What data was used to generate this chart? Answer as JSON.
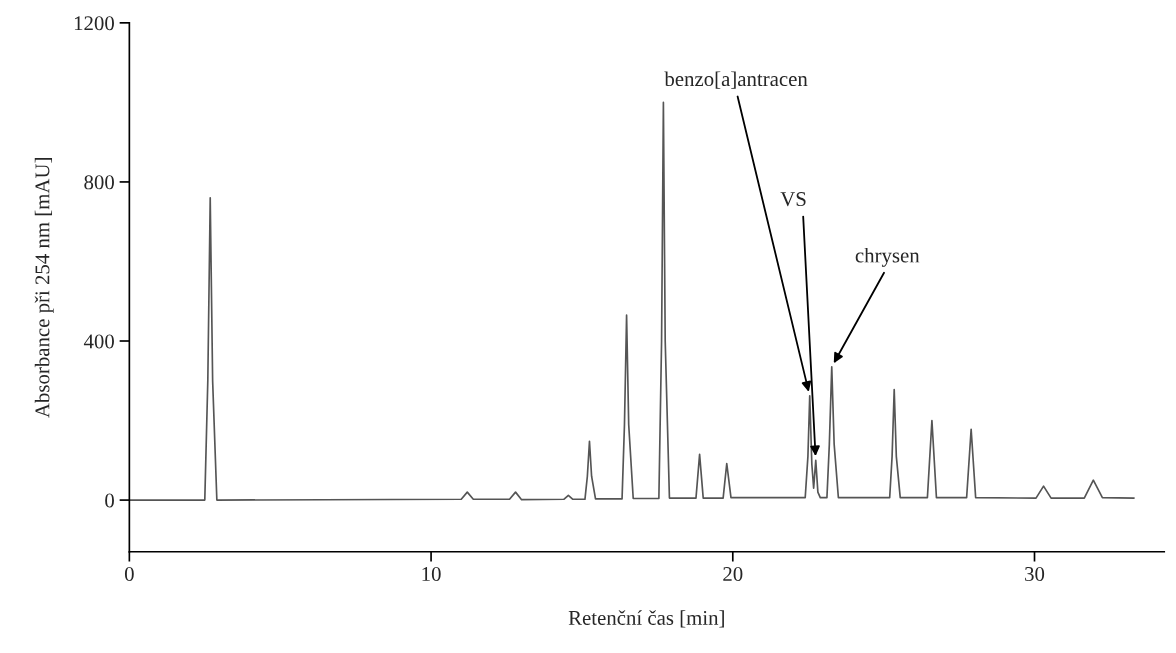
{
  "chart_data": {
    "type": "line",
    "xlabel": "Retenční čas [min]",
    "ylabel": "Absorbance při 254 nm [mAU]",
    "xlim": [
      0,
      34.3
    ],
    "xticks": [
      0,
      10,
      20,
      30
    ],
    "ylim": [
      -130,
      1200
    ],
    "yticks": [
      0,
      400,
      800,
      1200
    ],
    "grid": false,
    "legend": false,
    "marker": "none",
    "line_style": "solid",
    "series": [
      {
        "color": "#555555",
        "x": [
          0,
          2.5,
          2.6,
          2.68,
          2.76,
          2.9,
          11.0,
          11.2,
          11.4,
          12.6,
          12.8,
          13.0,
          14.4,
          14.55,
          14.7,
          15.1,
          15.18,
          15.25,
          15.32,
          15.45,
          16.33,
          16.41,
          16.48,
          16.55,
          16.7,
          17.55,
          17.64,
          17.7,
          17.76,
          17.9,
          18.78,
          18.9,
          19.02,
          19.68,
          19.8,
          19.94,
          22.4,
          22.49,
          22.55,
          22.62,
          22.68,
          22.75,
          22.82,
          22.9,
          23.12,
          23.2,
          23.28,
          23.36,
          23.5,
          25.2,
          25.28,
          25.35,
          25.42,
          25.55,
          26.45,
          26.6,
          26.75,
          27.75,
          27.9,
          28.05,
          30.05,
          30.3,
          30.55,
          31.65,
          31.95,
          32.25,
          33.3
        ],
        "values": [
          0,
          0,
          300,
          760,
          300,
          0,
          2,
          20,
          2,
          2,
          20,
          1,
          2,
          12,
          2,
          2,
          60,
          148,
          60,
          3,
          3,
          190,
          465,
          190,
          4,
          4,
          400,
          1000,
          400,
          5,
          5,
          115,
          5,
          5,
          92,
          6,
          6,
          110,
          262,
          90,
          30,
          100,
          20,
          6,
          6,
          140,
          335,
          140,
          6,
          6,
          110,
          278,
          110,
          6,
          6,
          200,
          6,
          6,
          178,
          6,
          5,
          35,
          5,
          5,
          50,
          6,
          5
        ]
      }
    ],
    "annotations": [
      {
        "text": "benzo[a]antracen",
        "x": 22.55,
        "y": 262
      },
      {
        "text": "VS",
        "x": 22.75,
        "y": 100
      },
      {
        "text": "chrysen",
        "x": 23.28,
        "y": 335
      }
    ]
  }
}
